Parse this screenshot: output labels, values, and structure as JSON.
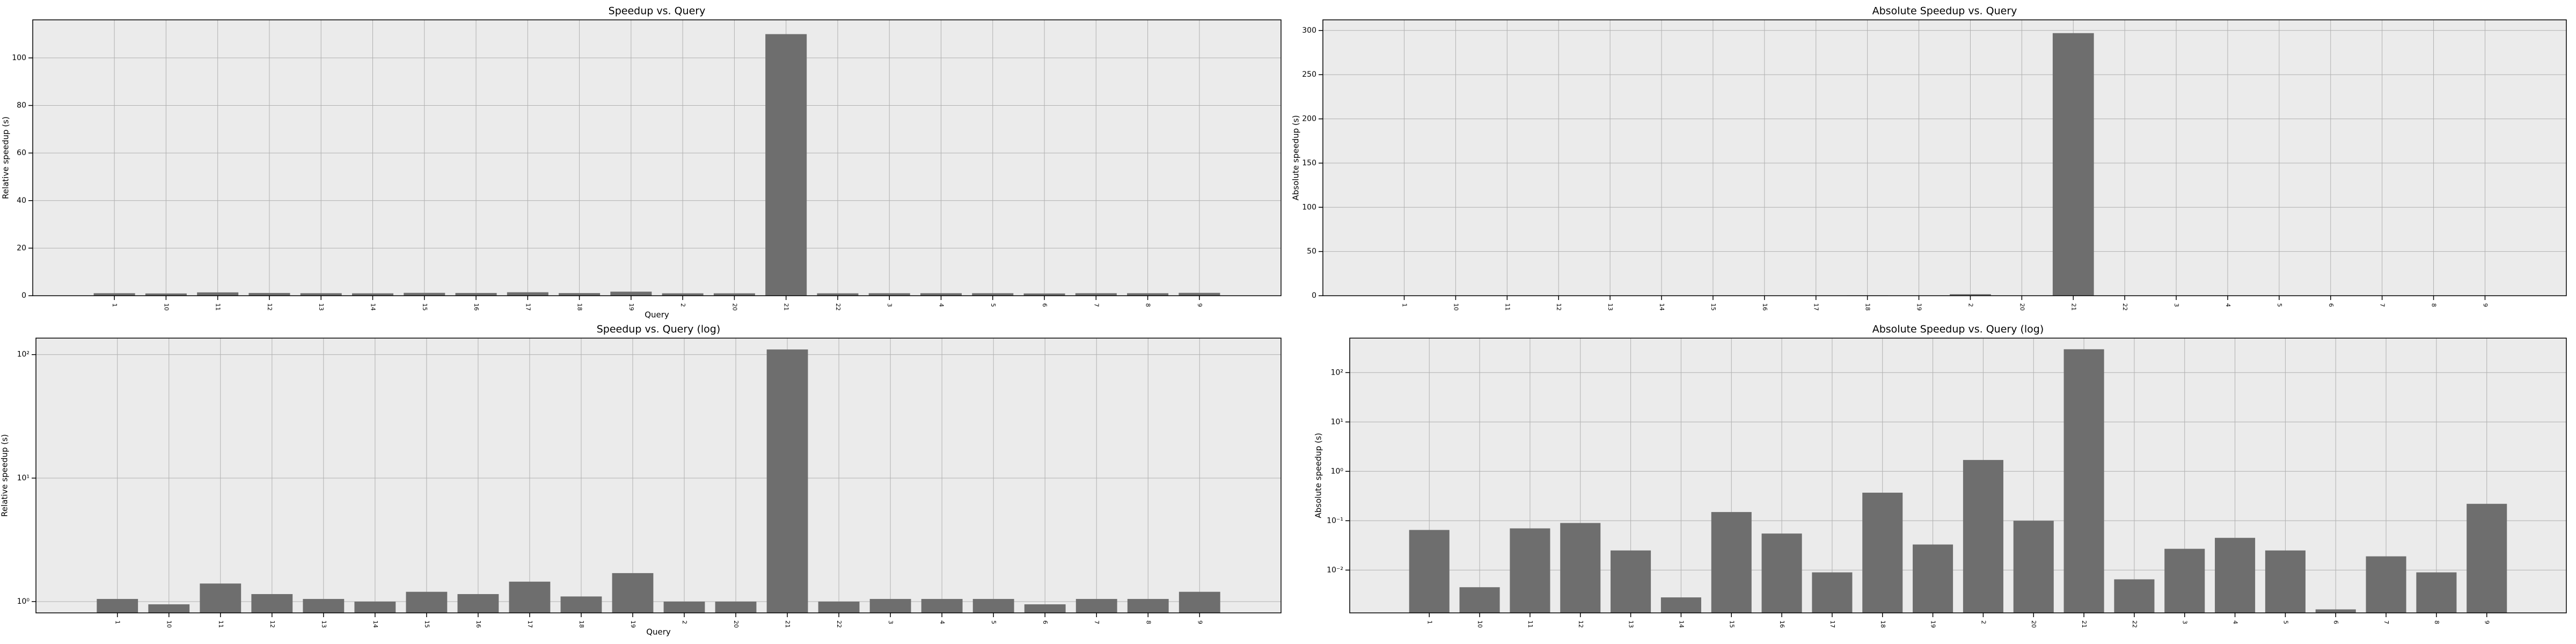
{
  "chart_data": [
    {
      "type": "bar",
      "title": "Speedup vs. Query",
      "xlabel": "Query",
      "ylabel": "Relative speedup (s)",
      "categories": [
        "1",
        "10",
        "11",
        "12",
        "13",
        "14",
        "15",
        "16",
        "17",
        "18",
        "19",
        "2",
        "20",
        "21",
        "22",
        "3",
        "4",
        "5",
        "6",
        "7",
        "8",
        "9"
      ],
      "values": [
        1.05,
        0.95,
        1.4,
        1.15,
        1.05,
        1.0,
        1.2,
        1.15,
        1.45,
        1.1,
        1.7,
        1.0,
        1.0,
        110,
        1.0,
        1.05,
        1.05,
        1.05,
        0.95,
        1.05,
        1.05,
        1.2
      ],
      "color": "#6e6e6e",
      "ylim": [
        0,
        116
      ],
      "yticks": [
        0,
        20,
        40,
        60,
        80,
        100
      ],
      "grid": true,
      "log": false
    },
    {
      "type": "bar",
      "title": "Absolute Speedup vs. Query",
      "ylabel": "Absolute speedup (s)",
      "categories": [
        "1",
        "10",
        "11",
        "12",
        "13",
        "14",
        "15",
        "16",
        "17",
        "18",
        "19",
        "2",
        "20",
        "21",
        "22",
        "3",
        "4",
        "5",
        "6",
        "7",
        "8",
        "9"
      ],
      "values": [
        0.065,
        0.0045,
        0.07,
        0.09,
        0.025,
        0.0028,
        0.15,
        0.055,
        0.009,
        0.37,
        0.033,
        1.7,
        0.1,
        297,
        0.0065,
        0.027,
        0.045,
        0.025,
        0.0016,
        0.019,
        0.009,
        0.22
      ],
      "color": "#6e6e6e",
      "ylim": [
        0,
        312
      ],
      "yticks": [
        0,
        50,
        100,
        150,
        200,
        250,
        300
      ],
      "grid": true,
      "log": false
    },
    {
      "type": "bar",
      "title": "Speedup vs. Query (log)",
      "xlabel": "Query",
      "ylabel": "Relative speedup (s)",
      "categories": [
        "1",
        "10",
        "11",
        "12",
        "13",
        "14",
        "15",
        "16",
        "17",
        "18",
        "19",
        "2",
        "20",
        "21",
        "22",
        "3",
        "4",
        "5",
        "6",
        "7",
        "8",
        "9"
      ],
      "values": [
        1.05,
        0.95,
        1.4,
        1.15,
        1.05,
        1.0,
        1.2,
        1.15,
        1.45,
        1.1,
        1.7,
        1.0,
        1.0,
        110,
        1.0,
        1.05,
        1.05,
        1.05,
        0.95,
        1.05,
        1.05,
        1.2
      ],
      "color": "#6e6e6e",
      "ylim": [
        0.81,
        136
      ],
      "yticks": [
        {
          "value": 1,
          "label": "10⁰"
        },
        {
          "value": 10,
          "label": "10¹"
        },
        {
          "value": 100,
          "label": "10²"
        }
      ],
      "grid": true,
      "log": true
    },
    {
      "type": "bar",
      "title": "Absolute Speedup vs. Query (log)",
      "ylabel": "Absolute speedup (s)",
      "categories": [
        "1",
        "10",
        "11",
        "12",
        "13",
        "14",
        "15",
        "16",
        "17",
        "18",
        "19",
        "2",
        "20",
        "21",
        "22",
        "3",
        "4",
        "5",
        "6",
        "7",
        "8",
        "9"
      ],
      "values": [
        0.065,
        0.0045,
        0.07,
        0.09,
        0.025,
        0.0028,
        0.15,
        0.055,
        0.009,
        0.37,
        0.033,
        1.7,
        0.1,
        297,
        0.0065,
        0.027,
        0.045,
        0.025,
        0.0016,
        0.019,
        0.009,
        0.22
      ],
      "color": "#6e6e6e",
      "ylim": [
        0.00136,
        500
      ],
      "yticks": [
        {
          "value": 0.01,
          "label": "10⁻²"
        },
        {
          "value": 0.1,
          "label": "10⁻¹"
        },
        {
          "value": 1,
          "label": "10⁰"
        },
        {
          "value": 10,
          "label": "10¹"
        },
        {
          "value": 100,
          "label": "10²"
        }
      ],
      "grid": true,
      "log": true
    }
  ]
}
